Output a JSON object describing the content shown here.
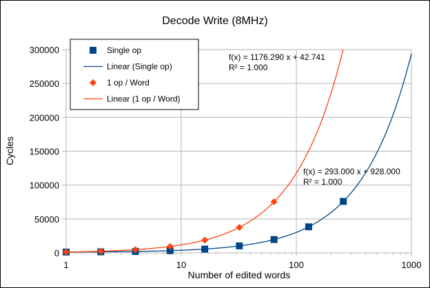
{
  "chart_data": {
    "type": "scatter",
    "title": "Decode Write (8MHz)",
    "xlabel": "Number of edited words",
    "ylabel": "Cycles",
    "xscale": "log",
    "xlim": [
      1,
      1000
    ],
    "ylim": [
      0,
      300000
    ],
    "x_ticks": [
      "1",
      "10",
      "100",
      "1000"
    ],
    "y_ticks": [
      "0",
      "50000",
      "100000",
      "150000",
      "200000",
      "250000",
      "300000"
    ],
    "grid": true,
    "legend_position": "top-left",
    "series": [
      {
        "name": "Single op",
        "kind": "points",
        "marker": "square",
        "color": "#004586",
        "x": [
          1,
          2,
          4,
          8,
          16,
          32,
          64,
          128,
          256
        ],
        "y": [
          1221,
          1514,
          2100,
          3272,
          5616,
          10304,
          19680,
          38432,
          75936
        ]
      },
      {
        "name": "Linear (Single op)",
        "kind": "trendline",
        "color": "#004586",
        "slope": 293.0,
        "intercept": 928.0
      },
      {
        "name": "1 op / Word",
        "kind": "points",
        "marker": "diamond",
        "color": "#ff420e",
        "x": [
          1,
          2,
          4,
          8,
          16,
          32,
          64
        ],
        "y": [
          1219,
          2395,
          4748,
          9453,
          18863,
          37684,
          75324
        ]
      },
      {
        "name": "Linear (1 op / Word)",
        "kind": "trendline",
        "color": "#ff420e",
        "slope": 1176.29,
        "intercept": 42.741
      }
    ],
    "annotations": [
      {
        "series": "Linear (1 op / Word)",
        "equation": "f(x) = 1176.290 x + 42.741",
        "r2": "R² = 1.000"
      },
      {
        "series": "Linear (Single op)",
        "equation": "f(x) = 293.000 x + 928.000",
        "r2": "R² = 1.000"
      }
    ]
  }
}
